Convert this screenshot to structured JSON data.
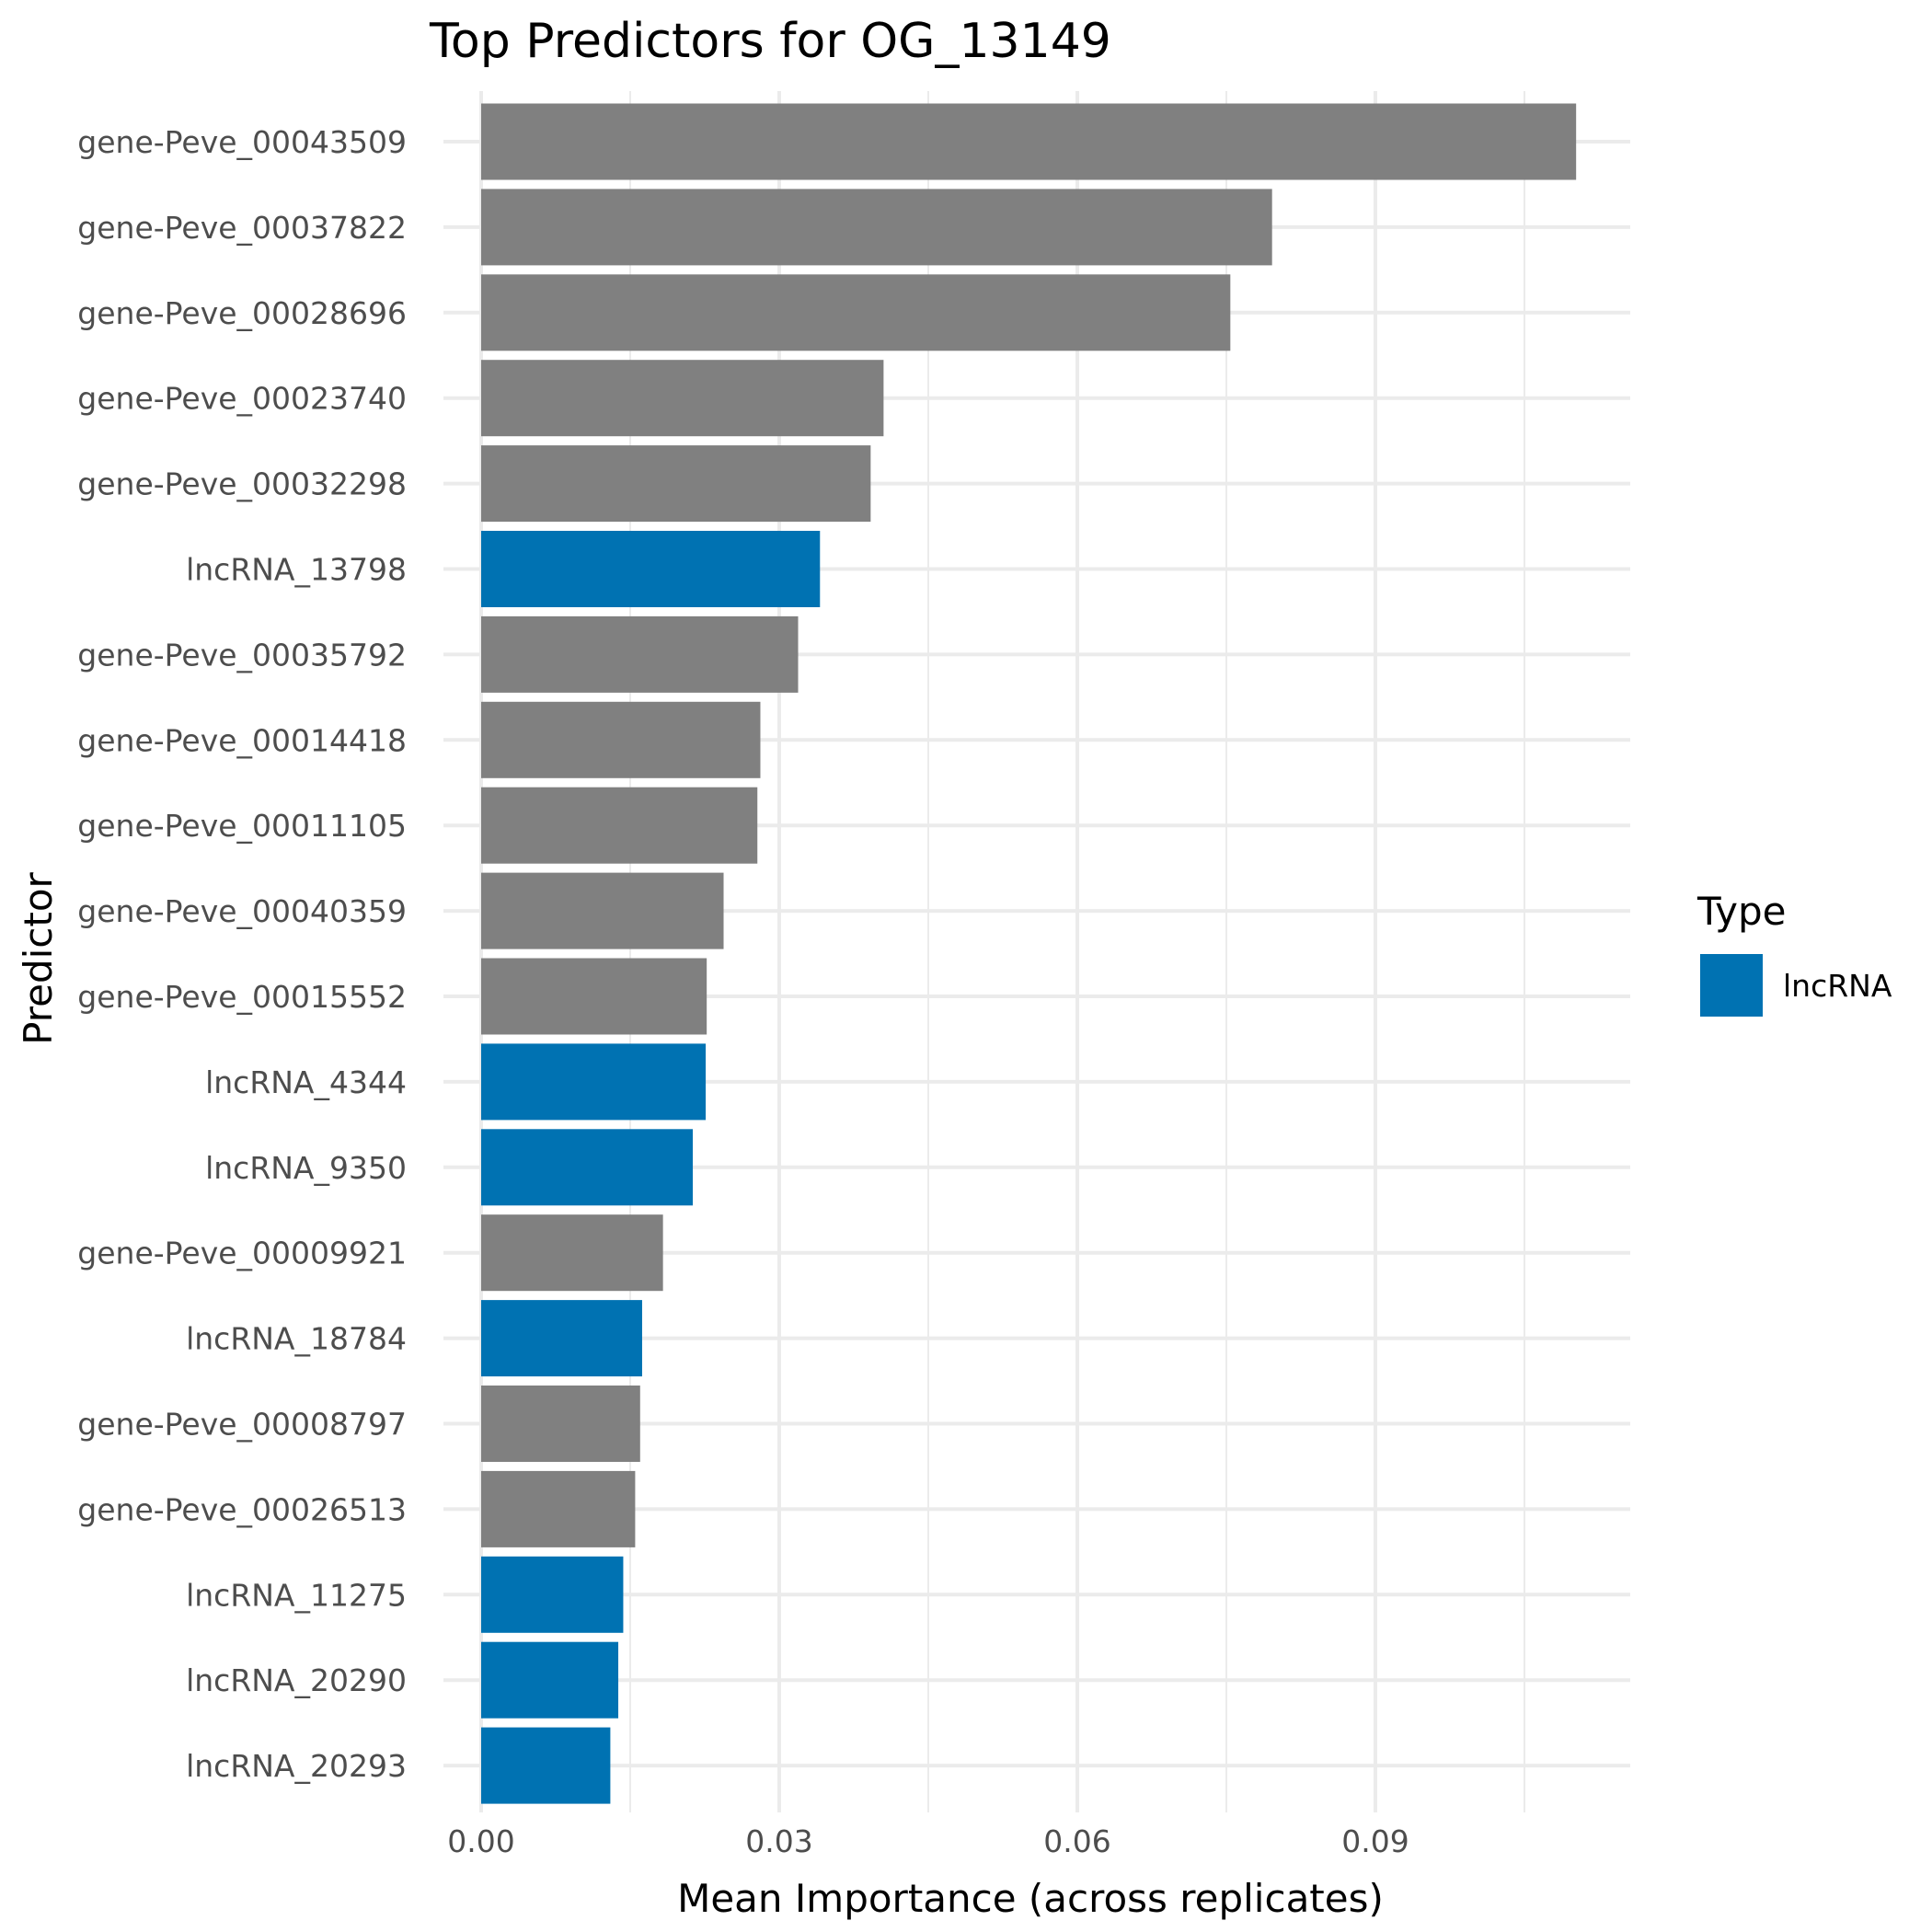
{
  "chart_data": {
    "type": "bar",
    "orientation": "horizontal",
    "title": "Top Predictors for OG_13149",
    "xlabel": "Mean Importance (across replicates)",
    "ylabel": "Predictor",
    "xlim": [
      0,
      0.1155
    ],
    "x_ticks": [
      0.0,
      0.03,
      0.06,
      0.09
    ],
    "x_tick_labels": [
      "0.00",
      "0.03",
      "0.06",
      "0.09"
    ],
    "grid": true,
    "legend": {
      "title": "Type",
      "placement": "right",
      "entries": [
        {
          "label": "lncRNA",
          "color": "#0072B2"
        }
      ]
    },
    "colors": {
      "gene": "#808080",
      "lncRNA": "#0072B2"
    },
    "categories": [
      "gene-Peve_00043509",
      "gene-Peve_00037822",
      "gene-Peve_00028696",
      "gene-Peve_00023740",
      "gene-Peve_00032298",
      "lncRNA_13798",
      "gene-Peve_00035792",
      "gene-Peve_00014418",
      "gene-Peve_00011105",
      "gene-Peve_00040359",
      "gene-Peve_00015552",
      "lncRNA_4344",
      "lncRNA_9350",
      "gene-Peve_00009921",
      "lncRNA_18784",
      "gene-Peve_00008797",
      "gene-Peve_00026513",
      "lncRNA_11275",
      "lncRNA_20290",
      "lncRNA_20293"
    ],
    "values": [
      0.1102,
      0.0796,
      0.0754,
      0.0405,
      0.0392,
      0.0341,
      0.0319,
      0.0281,
      0.0278,
      0.0244,
      0.0227,
      0.0226,
      0.0213,
      0.0183,
      0.0162,
      0.016,
      0.0155,
      0.0143,
      0.0138,
      0.013
    ],
    "types": [
      "gene",
      "gene",
      "gene",
      "gene",
      "gene",
      "lncRNA",
      "gene",
      "gene",
      "gene",
      "gene",
      "gene",
      "lncRNA",
      "lncRNA",
      "gene",
      "lncRNA",
      "gene",
      "gene",
      "lncRNA",
      "lncRNA",
      "lncRNA"
    ]
  }
}
